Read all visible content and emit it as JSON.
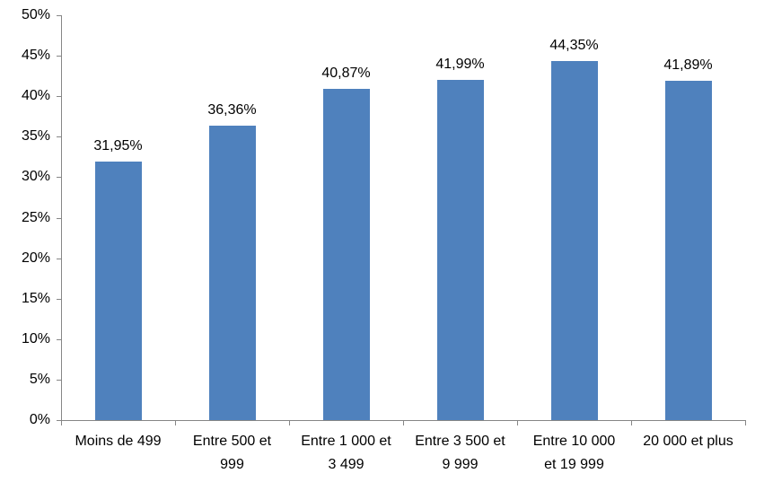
{
  "chart_data": {
    "type": "bar",
    "title": "",
    "xlabel": "",
    "ylabel": "",
    "categories": [
      "Moins de 499",
      "Entre 500 et\n999",
      "Entre 1 000 et\n3 499",
      "Entre 3 500 et\n9 999",
      "Entre 10 000\net 19 999",
      "20 000 et plus"
    ],
    "values": [
      31.95,
      36.36,
      40.87,
      41.99,
      44.35,
      41.89
    ],
    "value_labels": [
      "31,95%",
      "36,36%",
      "40,87%",
      "41,99%",
      "44,35%",
      "41,89%"
    ],
    "ylim": [
      0,
      50
    ],
    "ytick_step": 5,
    "ytick_labels": [
      "0%",
      "5%",
      "10%",
      "15%",
      "20%",
      "25%",
      "30%",
      "35%",
      "40%",
      "45%",
      "50%"
    ],
    "grid": false,
    "legend": false,
    "colors": {
      "bar_fill": "#4F81BD",
      "axis": "#868686",
      "text": "#000000"
    }
  }
}
